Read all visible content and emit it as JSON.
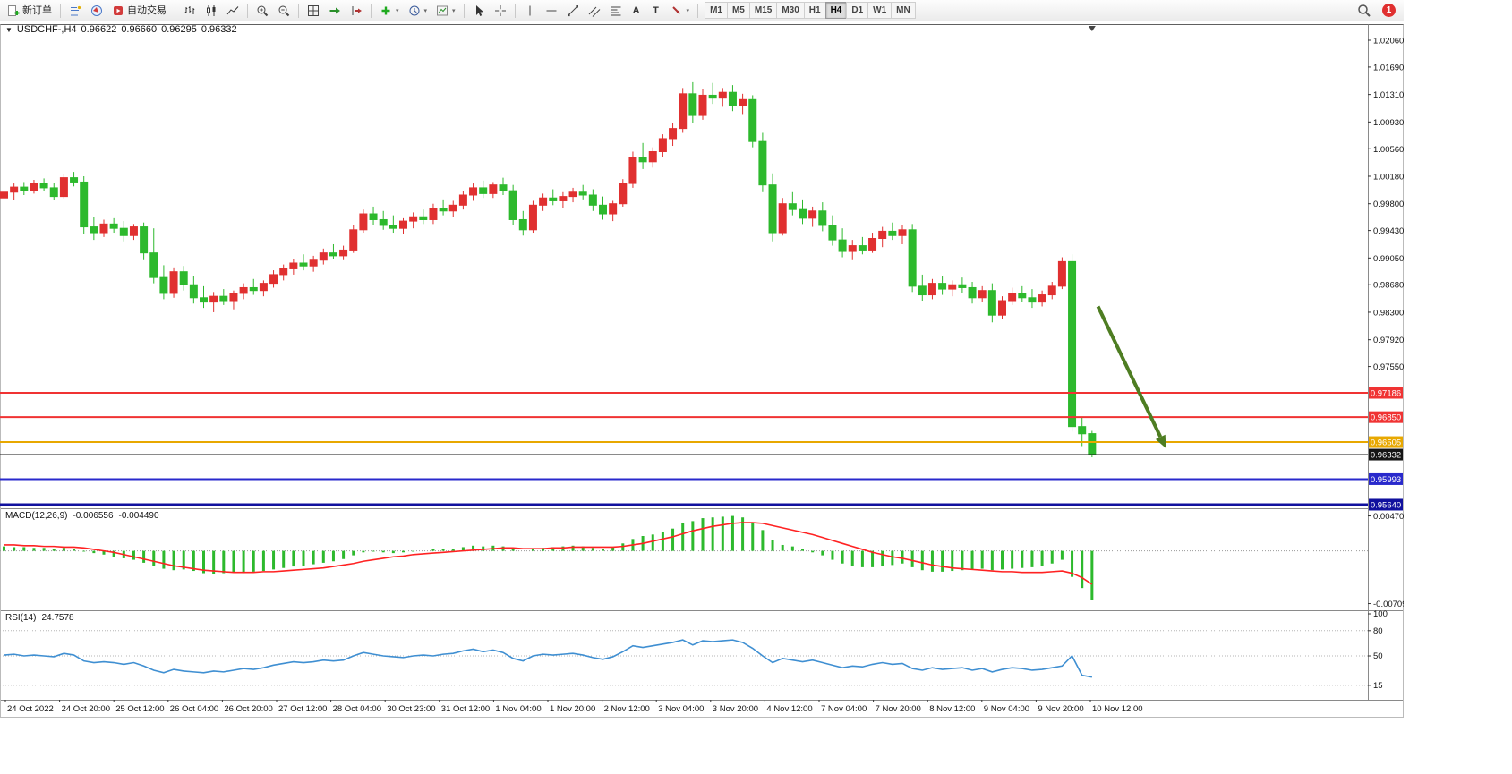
{
  "toolbar": {
    "new_order_label": "新订单",
    "auto_trading_label": "自动交易",
    "timeframes": [
      "M1",
      "M5",
      "M15",
      "M30",
      "H1",
      "H4",
      "D1",
      "W1",
      "MN"
    ],
    "active_timeframe": "H4",
    "notification_count": "1"
  },
  "icons": {
    "dropdown_caret": "▾",
    "symbol_triangle": "▼",
    "text_tool": "A",
    "text_label_tool": "T"
  },
  "chart": {
    "title": "USDCHF-,H4",
    "ohlc": {
      "open": "0.96622",
      "high": "0.96660",
      "low": "0.96295",
      "close": "0.96332"
    }
  },
  "time_axis": {
    "labels": [
      "24 Oct 2022",
      "24 Oct 20:00",
      "25 Oct 12:00",
      "26 Oct 04:00",
      "26 Oct 20:00",
      "27 Oct 12:00",
      "28 Oct 04:00",
      "30 Oct 23:00",
      "31 Oct 12:00",
      "1 Nov 04:00",
      "1 Nov 20:00",
      "2 Nov 12:00",
      "3 Nov 04:00",
      "3 Nov 20:00",
      "4 Nov 12:00",
      "7 Nov 04:00",
      "7 Nov 20:00",
      "8 Nov 12:00",
      "9 Nov 04:00",
      "9 Nov 20:00",
      "10 Nov 12:00"
    ]
  },
  "chart_data": {
    "type": "candlestick",
    "symbol": "USDCHF",
    "timeframe": "H4",
    "ylim": [
      0.95615,
      1.02258
    ],
    "y_ticks": [
      "1.02060",
      "1.01690",
      "1.01310",
      "1.00930",
      "1.00560",
      "1.00180",
      "0.99800",
      "0.99430",
      "0.99050",
      "0.98680",
      "0.98300",
      "0.97920",
      "0.97550"
    ],
    "bull_color": "#e03030",
    "bear_color": "#2db92d",
    "candles": [
      [
        0.9988,
        1.0002,
        0.9972,
        0.9996
      ],
      [
        0.9996,
        1.0008,
        0.9985,
        1.0003
      ],
      [
        1.0003,
        1.001,
        0.9992,
        0.9998
      ],
      [
        0.9998,
        1.0013,
        0.9994,
        1.0008
      ],
      [
        1.0008,
        1.0015,
        0.9998,
        1.0002
      ],
      [
        1.0002,
        1.0009,
        0.9985,
        0.999
      ],
      [
        0.999,
        1.0021,
        0.9987,
        1.0016
      ],
      [
        1.0016,
        1.0024,
        1.0004,
        1.001
      ],
      [
        1.001,
        1.0018,
        0.9938,
        0.9948
      ],
      [
        0.9948,
        0.9962,
        0.993,
        0.994
      ],
      [
        0.994,
        0.9958,
        0.9934,
        0.9952
      ],
      [
        0.9952,
        0.996,
        0.994,
        0.9946
      ],
      [
        0.9946,
        0.9956,
        0.9928,
        0.9936
      ],
      [
        0.9936,
        0.9952,
        0.993,
        0.9948
      ],
      [
        0.9948,
        0.9954,
        0.9902,
        0.9912
      ],
      [
        0.9912,
        0.9946,
        0.987,
        0.9878
      ],
      [
        0.9878,
        0.9895,
        0.9848,
        0.9856
      ],
      [
        0.9856,
        0.9892,
        0.985,
        0.9886
      ],
      [
        0.9886,
        0.9894,
        0.986,
        0.9868
      ],
      [
        0.9868,
        0.988,
        0.9842,
        0.985
      ],
      [
        0.985,
        0.9866,
        0.9836,
        0.9844
      ],
      [
        0.9844,
        0.9858,
        0.983,
        0.9852
      ],
      [
        0.9852,
        0.9862,
        0.984,
        0.9846
      ],
      [
        0.9846,
        0.986,
        0.9834,
        0.9856
      ],
      [
        0.9856,
        0.987,
        0.9848,
        0.9864
      ],
      [
        0.9864,
        0.9876,
        0.9854,
        0.986
      ],
      [
        0.986,
        0.9874,
        0.9852,
        0.987
      ],
      [
        0.987,
        0.9888,
        0.9864,
        0.9882
      ],
      [
        0.9882,
        0.9896,
        0.9874,
        0.989
      ],
      [
        0.989,
        0.9904,
        0.9882,
        0.9898
      ],
      [
        0.9898,
        0.991,
        0.9888,
        0.9894
      ],
      [
        0.9894,
        0.9908,
        0.9886,
        0.9902
      ],
      [
        0.9902,
        0.9918,
        0.9896,
        0.9912
      ],
      [
        0.9912,
        0.9924,
        0.9904,
        0.9908
      ],
      [
        0.9908,
        0.9922,
        0.9902,
        0.9916
      ],
      [
        0.9916,
        0.995,
        0.9912,
        0.9944
      ],
      [
        0.9944,
        0.9972,
        0.994,
        0.9966
      ],
      [
        0.9966,
        0.9976,
        0.995,
        0.9958
      ],
      [
        0.9958,
        0.997,
        0.9944,
        0.995
      ],
      [
        0.995,
        0.9964,
        0.994,
        0.9946
      ],
      [
        0.9946,
        0.996,
        0.9938,
        0.9956
      ],
      [
        0.9956,
        0.9968,
        0.9946,
        0.9962
      ],
      [
        0.9962,
        0.9972,
        0.9952,
        0.9958
      ],
      [
        0.9958,
        0.998,
        0.9952,
        0.9974
      ],
      [
        0.9974,
        0.9986,
        0.9964,
        0.997
      ],
      [
        0.997,
        0.9984,
        0.9962,
        0.9978
      ],
      [
        0.9978,
        0.9998,
        0.9972,
        0.9992
      ],
      [
        0.9992,
        1.0008,
        0.9984,
        1.0002
      ],
      [
        1.0002,
        1.0012,
        0.9988,
        0.9994
      ],
      [
        0.9994,
        1.001,
        0.9988,
        1.0006
      ],
      [
        1.0006,
        1.0016,
        0.9992,
        0.9998
      ],
      [
        0.9998,
        1.0006,
        0.995,
        0.9958
      ],
      [
        0.9958,
        0.997,
        0.9936,
        0.9944
      ],
      [
        0.9944,
        0.9984,
        0.994,
        0.9978
      ],
      [
        0.9978,
        0.9994,
        0.997,
        0.9988
      ],
      [
        0.9988,
        1.0,
        0.9978,
        0.9984
      ],
      [
        0.9984,
        0.9996,
        0.9974,
        0.999
      ],
      [
        0.999,
        1.0002,
        0.9982,
        0.9996
      ],
      [
        0.9996,
        1.0006,
        0.9986,
        0.9992
      ],
      [
        0.9992,
        1.0,
        0.997,
        0.9978
      ],
      [
        0.9978,
        0.999,
        0.9958,
        0.9966
      ],
      [
        0.9966,
        0.9984,
        0.9956,
        0.998
      ],
      [
        0.998,
        1.0014,
        0.9976,
        1.0008
      ],
      [
        1.0008,
        1.0052,
        1.0002,
        1.0044
      ],
      [
        1.0044,
        1.0064,
        1.0028,
        1.0038
      ],
      [
        1.0038,
        1.0058,
        1.003,
        1.0052
      ],
      [
        1.0052,
        1.0076,
        1.0044,
        1.007
      ],
      [
        1.007,
        1.0092,
        1.006,
        1.0084
      ],
      [
        1.0084,
        1.014,
        1.0078,
        1.0132
      ],
      [
        1.0132,
        1.0148,
        1.0092,
        1.0102
      ],
      [
        1.0102,
        1.0138,
        1.0096,
        1.013
      ],
      [
        1.013,
        1.0147,
        1.0118,
        1.0126
      ],
      [
        1.0126,
        1.014,
        1.0114,
        1.0134
      ],
      [
        1.0134,
        1.0144,
        1.0108,
        1.0116
      ],
      [
        1.0116,
        1.0132,
        1.0104,
        1.0124
      ],
      [
        1.0124,
        1.013,
        1.0058,
        1.0066
      ],
      [
        1.0066,
        1.0078,
        0.9996,
        1.0006
      ],
      [
        1.0006,
        1.0022,
        0.9928,
        0.994
      ],
      [
        0.994,
        0.9988,
        0.9936,
        0.998
      ],
      [
        0.998,
        0.9996,
        0.9964,
        0.9972
      ],
      [
        0.9972,
        0.9986,
        0.9952,
        0.996
      ],
      [
        0.996,
        0.9976,
        0.9948,
        0.997
      ],
      [
        0.997,
        0.9982,
        0.9942,
        0.995
      ],
      [
        0.995,
        0.9964,
        0.9922,
        0.993
      ],
      [
        0.993,
        0.9946,
        0.9906,
        0.9914
      ],
      [
        0.9914,
        0.993,
        0.9902,
        0.9922
      ],
      [
        0.9922,
        0.9934,
        0.991,
        0.9916
      ],
      [
        0.9916,
        0.994,
        0.9912,
        0.9932
      ],
      [
        0.9932,
        0.9948,
        0.992,
        0.9942
      ],
      [
        0.9942,
        0.9954,
        0.993,
        0.9936
      ],
      [
        0.9936,
        0.995,
        0.9924,
        0.9944
      ],
      [
        0.9944,
        0.9952,
        0.9858,
        0.9866
      ],
      [
        0.9866,
        0.9882,
        0.9846,
        0.9854
      ],
      [
        0.9854,
        0.9876,
        0.9848,
        0.987
      ],
      [
        0.987,
        0.988,
        0.9854,
        0.9862
      ],
      [
        0.9862,
        0.9874,
        0.9852,
        0.9868
      ],
      [
        0.9868,
        0.9878,
        0.9856,
        0.9864
      ],
      [
        0.9864,
        0.9872,
        0.9842,
        0.985
      ],
      [
        0.985,
        0.9866,
        0.9844,
        0.986
      ],
      [
        0.986,
        0.987,
        0.9816,
        0.9826
      ],
      [
        0.9826,
        0.9852,
        0.982,
        0.9846
      ],
      [
        0.9846,
        0.9864,
        0.984,
        0.9856
      ],
      [
        0.9856,
        0.9866,
        0.9844,
        0.985
      ],
      [
        0.985,
        0.9862,
        0.9836,
        0.9844
      ],
      [
        0.9844,
        0.986,
        0.9838,
        0.9854
      ],
      [
        0.9854,
        0.9872,
        0.9848,
        0.9866
      ],
      [
        0.9866,
        0.9906,
        0.9862,
        0.99
      ],
      [
        0.99,
        0.991,
        0.9665,
        0.9672
      ],
      [
        0.9672,
        0.9685,
        0.9645,
        0.9662
      ],
      [
        0.96622,
        0.9666,
        0.96295,
        0.96332
      ]
    ],
    "hlines": [
      {
        "price": 0.97186,
        "label": "0.97186",
        "color": "#f03333",
        "width": 2
      },
      {
        "price": 0.9685,
        "label": "0.96850",
        "color": "#f03333",
        "width": 2
      },
      {
        "price": 0.96505,
        "label": "0.96505",
        "color": "#e8a800",
        "width": 2
      },
      {
        "price": 0.96332,
        "label": "0.96332",
        "color": "#151515",
        "width": 1
      },
      {
        "price": 0.95993,
        "label": "0.95993",
        "color": "#2929cc",
        "width": 2
      },
      {
        "price": 0.9564,
        "label": "0.95640",
        "color": "#11119e",
        "width": 3
      }
    ],
    "arrow": {
      "from_bar": 109.6,
      "from_price": 0.9838,
      "to_bar": 116.4,
      "to_price": 0.9642,
      "color": "#4e7d22",
      "width": 4
    },
    "macd": {
      "label": "MACD(12,26,9)",
      "value_main": "-0.006556",
      "value_signal": "-0.004490",
      "ylim": [
        -0.00775,
        0.00525
      ],
      "axis_labels": [
        "0.004703",
        "-0.007093"
      ],
      "histogram_color": "#2db92d",
      "signal_color": "#ff2222",
      "histogram": [
        0.0006,
        0.0005,
        0.0005,
        0.0004,
        0.0004,
        0.0003,
        0.0004,
        0.0003,
        -0.0001,
        -0.0003,
        -0.0005,
        -0.0008,
        -0.001,
        -0.0012,
        -0.0016,
        -0.002,
        -0.0024,
        -0.0026,
        -0.0025,
        -0.0027,
        -0.003,
        -0.0031,
        -0.003,
        -0.0029,
        -0.003,
        -0.0028,
        -0.0027,
        -0.0025,
        -0.0023,
        -0.0021,
        -0.002,
        -0.0018,
        -0.0016,
        -0.0014,
        -0.0011,
        -0.0006,
        -0.0002,
        -0.0001,
        -0.0002,
        -0.0003,
        -0.0002,
        -0.0001,
        0.0,
        0.0002,
        0.0002,
        0.0003,
        0.0005,
        0.0007,
        0.0006,
        0.0007,
        0.0006,
        0.0002,
        0.0,
        0.0002,
        0.0004,
        0.0005,
        0.0006,
        0.0007,
        0.0006,
        0.0004,
        0.0003,
        0.0005,
        0.001,
        0.0016,
        0.002,
        0.0022,
        0.0026,
        0.003,
        0.0038,
        0.004,
        0.0044,
        0.0045,
        0.0046,
        0.0047,
        0.0045,
        0.0038,
        0.0028,
        0.0014,
        0.0008,
        0.0006,
        0.0002,
        -0.0002,
        -0.0006,
        -0.0012,
        -0.0017,
        -0.002,
        -0.0022,
        -0.0022,
        -0.002,
        -0.0019,
        -0.0017,
        -0.0022,
        -0.0026,
        -0.0028,
        -0.0028,
        -0.0027,
        -0.0026,
        -0.0025,
        -0.0024,
        -0.0026,
        -0.0025,
        -0.0024,
        -0.0023,
        -0.0022,
        -0.002,
        -0.0017,
        -0.0012,
        -0.0035,
        -0.005,
        -0.006556
      ],
      "signal": [
        0.0008,
        0.0008,
        0.0007,
        0.0007,
        0.0006,
        0.0006,
        0.0005,
        0.0005,
        0.0004,
        0.0002,
        0.0,
        -0.0002,
        -0.0005,
        -0.0008,
        -0.0011,
        -0.0014,
        -0.0017,
        -0.002,
        -0.0022,
        -0.0024,
        -0.0026,
        -0.0027,
        -0.0028,
        -0.0029,
        -0.0029,
        -0.0029,
        -0.0028,
        -0.0028,
        -0.0027,
        -0.0026,
        -0.0025,
        -0.0024,
        -0.0023,
        -0.0021,
        -0.0019,
        -0.0017,
        -0.0014,
        -0.0012,
        -0.001,
        -0.0008,
        -0.0007,
        -0.0005,
        -0.0004,
        -0.0003,
        -0.0002,
        -0.0001,
        0.0,
        0.0001,
        0.0002,
        0.0003,
        0.0004,
        0.0004,
        0.0003,
        0.0003,
        0.0003,
        0.0004,
        0.0004,
        0.0005,
        0.0005,
        0.0005,
        0.0005,
        0.0005,
        0.0006,
        0.0008,
        0.001,
        0.0013,
        0.0016,
        0.0019,
        0.0023,
        0.0027,
        0.003,
        0.0033,
        0.0035,
        0.0037,
        0.0038,
        0.0038,
        0.0037,
        0.0034,
        0.0031,
        0.0028,
        0.0025,
        0.0022,
        0.0018,
        0.0014,
        0.001,
        0.0006,
        0.0002,
        -0.0002,
        -0.0005,
        -0.0008,
        -0.001,
        -0.0013,
        -0.0016,
        -0.0019,
        -0.0021,
        -0.0023,
        -0.0024,
        -0.0025,
        -0.0026,
        -0.0027,
        -0.0028,
        -0.0028,
        -0.0029,
        -0.0029,
        -0.0029,
        -0.0028,
        -0.0027,
        -0.003,
        -0.0036,
        -0.00449
      ]
    },
    "rsi": {
      "label": "RSI(14)",
      "value": "24.7578",
      "levels": [
        80,
        50,
        15
      ],
      "axis_labels": [
        "100",
        "80",
        "50",
        "15"
      ],
      "line_color": "#3f8fd2",
      "series": [
        51,
        52,
        50,
        51,
        50,
        49,
        53,
        51,
        44,
        42,
        43,
        42,
        40,
        42,
        38,
        33,
        30,
        34,
        32,
        31,
        30,
        32,
        31,
        33,
        35,
        34,
        36,
        39,
        41,
        43,
        42,
        43,
        45,
        44,
        45,
        50,
        54,
        52,
        50,
        49,
        48,
        50,
        51,
        50,
        52,
        53,
        56,
        58,
        55,
        57,
        54,
        47,
        44,
        50,
        52,
        51,
        52,
        53,
        51,
        48,
        46,
        49,
        55,
        62,
        60,
        62,
        64,
        66,
        69,
        63,
        68,
        67,
        68,
        69,
        66,
        59,
        50,
        42,
        47,
        45,
        43,
        45,
        42,
        39,
        36,
        38,
        37,
        40,
        42,
        40,
        41,
        35,
        33,
        36,
        34,
        35,
        36,
        33,
        35,
        31,
        34,
        36,
        35,
        33,
        34,
        36,
        38,
        50,
        27,
        24.7578
      ]
    }
  }
}
